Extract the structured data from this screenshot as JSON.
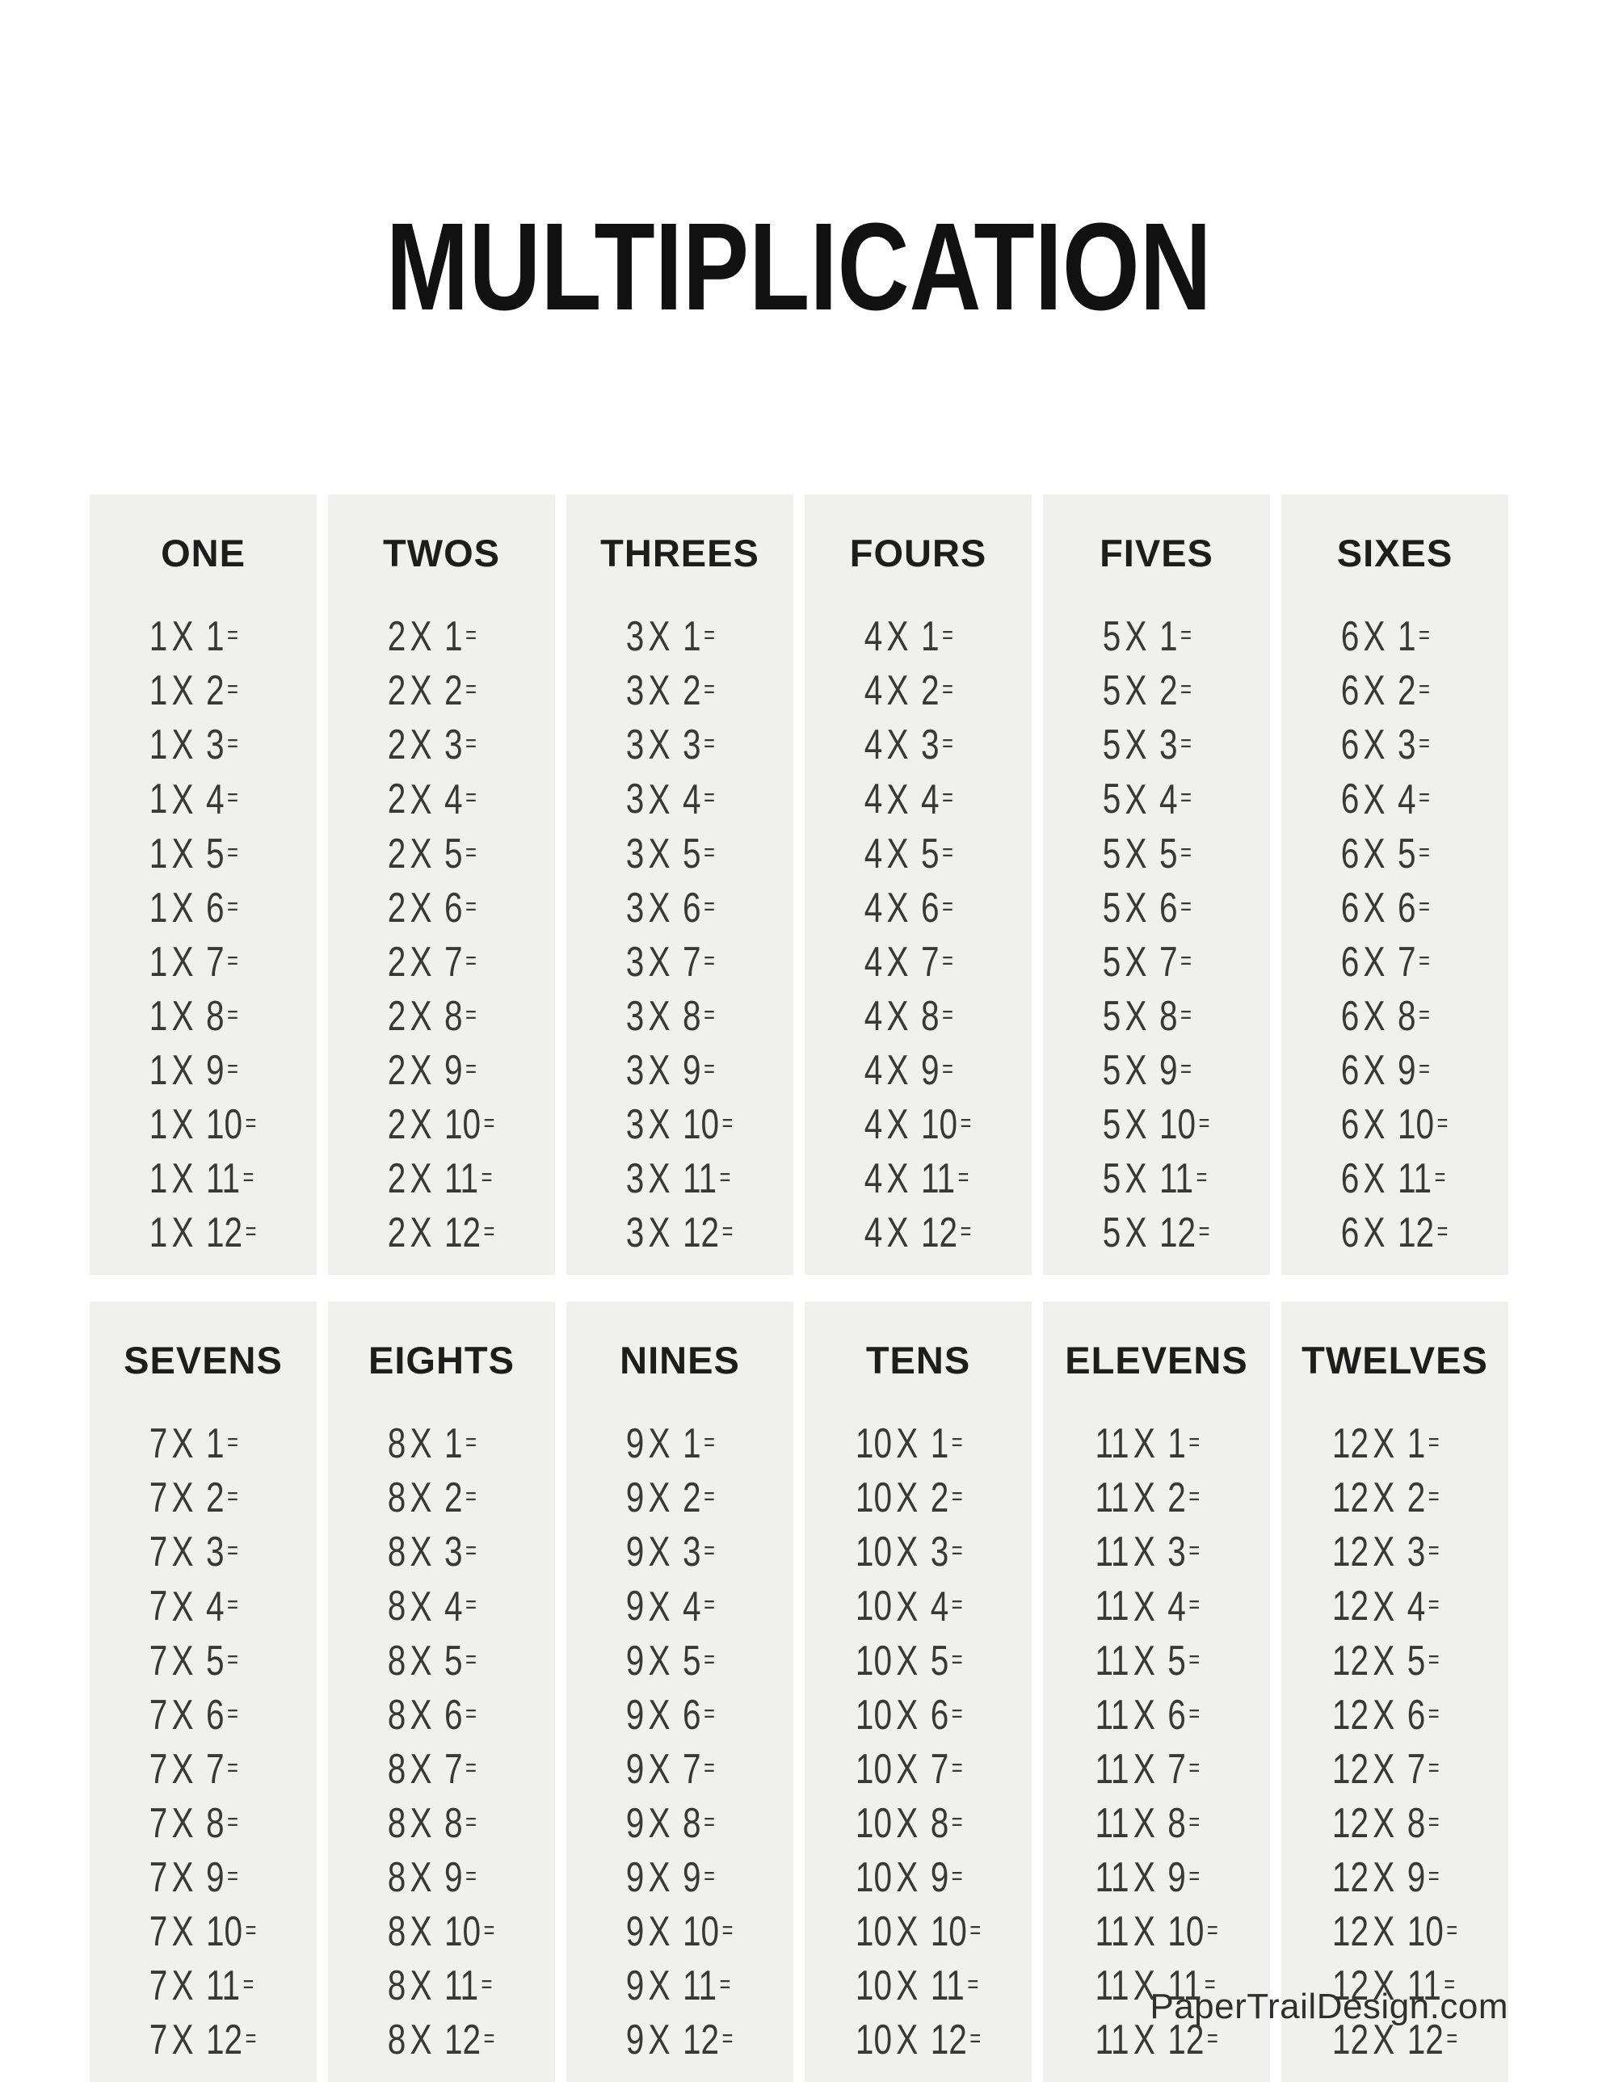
{
  "page": {
    "title": "MULTIPLICATION",
    "footer": "PaperTrailDesign.com"
  },
  "equation_format": {
    "operator": "X",
    "equals_sign": "="
  },
  "multipliers": [
    1,
    2,
    3,
    4,
    5,
    6,
    7,
    8,
    9,
    10,
    11,
    12
  ],
  "tables": [
    {
      "label": "ONE",
      "factor": 1
    },
    {
      "label": "TWOS",
      "factor": 2
    },
    {
      "label": "THREES",
      "factor": 3
    },
    {
      "label": "FOURS",
      "factor": 4
    },
    {
      "label": "FIVES",
      "factor": 5
    },
    {
      "label": "SIXES",
      "factor": 6
    },
    {
      "label": "SEVENS",
      "factor": 7
    },
    {
      "label": "EIGHTS",
      "factor": 8
    },
    {
      "label": "NINES",
      "factor": 9
    },
    {
      "label": "TENS",
      "factor": 10
    },
    {
      "label": "ELEVENS",
      "factor": 11
    },
    {
      "label": "TWELVES",
      "factor": 12
    }
  ],
  "colors": {
    "page_bg": "#ffffff",
    "panel_bg": "#f0f0ee",
    "title_text": "#111111",
    "header_text": "#1d1d1d",
    "equation_text": "#383838",
    "footer_text": "#2f2f2f"
  }
}
